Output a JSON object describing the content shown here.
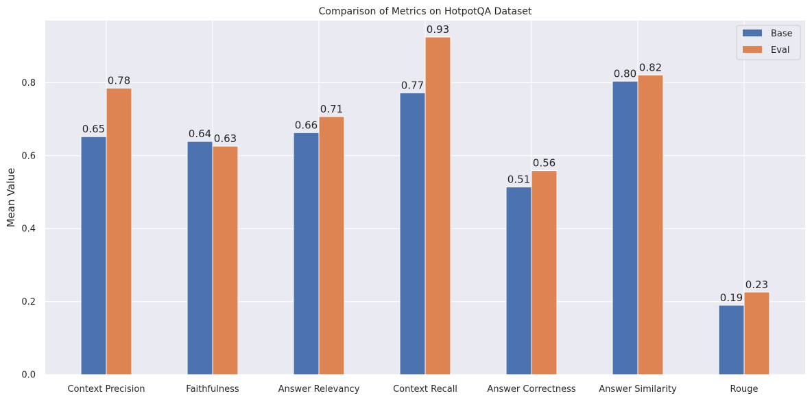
{
  "chart_data": {
    "type": "bar",
    "title": "Comparison of Metrics on HotpotQA Dataset",
    "xlabel": "",
    "ylabel": "Mean Value",
    "ylim": [
      0,
      0.97
    ],
    "yticks": [
      "0.0",
      "0.2",
      "0.4",
      "0.6",
      "0.8"
    ],
    "grid": true,
    "legend_position": "top-right",
    "categories": [
      "Context Precision",
      "Faithfulness",
      "Answer Relevancy",
      "Context Recall",
      "Answer Correctness",
      "Answer Similarity",
      "Rouge"
    ],
    "series": [
      {
        "name": "Base",
        "color": "#4c72b0",
        "values": [
          0.652,
          0.639,
          0.663,
          0.772,
          0.514,
          0.804,
          0.19
        ],
        "labels": [
          "0.65",
          "0.64",
          "0.66",
          "0.77",
          "0.51",
          "0.80",
          "0.19"
        ]
      },
      {
        "name": "Eval",
        "color": "#dd8452",
        "values": [
          0.785,
          0.626,
          0.707,
          0.925,
          0.559,
          0.821,
          0.226
        ],
        "labels": [
          "0.78",
          "0.63",
          "0.71",
          "0.93",
          "0.56",
          "0.82",
          "0.23"
        ]
      }
    ],
    "background_color": "#eaeaf2",
    "grid_color": "#ffffff"
  }
}
